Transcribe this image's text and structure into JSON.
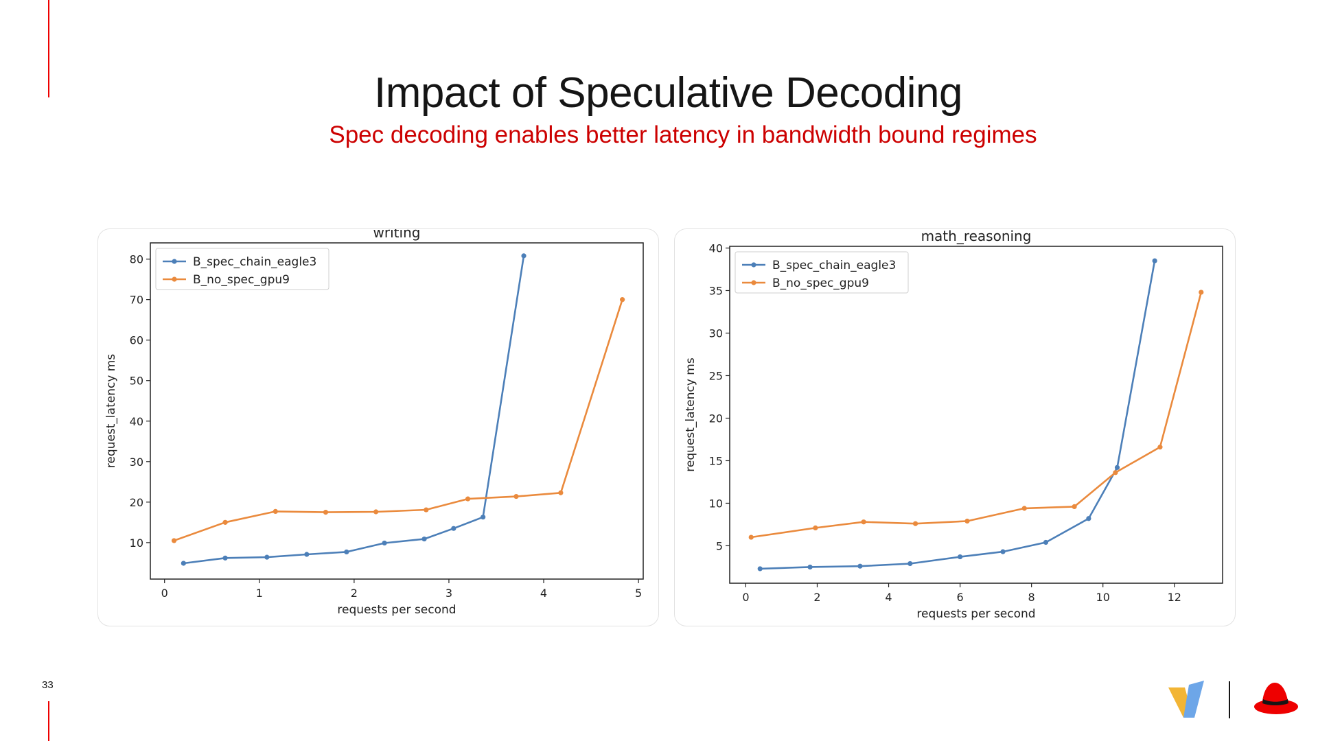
{
  "slide": {
    "title": "Impact of Speculative Decoding",
    "subtitle": "Spec decoding enables better latency in bandwidth bound regimes",
    "page_number": "33"
  },
  "colors": {
    "accent": "#ee0000",
    "subtitle": "#cc0000",
    "series_blue": "#4c7fb8",
    "series_orange": "#ea8a3d"
  },
  "logos": [
    "v-logo-icon",
    "red-hat-icon"
  ],
  "chart_data": [
    {
      "type": "line",
      "title": "writing",
      "xlabel": "requests per second",
      "ylabel": "request_latency ms",
      "xlim": [
        -0.15,
        5.05
      ],
      "ylim": [
        1,
        84
      ],
      "xticks": [
        0,
        1,
        2,
        3,
        4,
        5
      ],
      "yticks": [
        10,
        20,
        30,
        40,
        50,
        60,
        70,
        80
      ],
      "legend": "top-left",
      "grid": false,
      "series": [
        {
          "name": "B_spec_chain_eagle3",
          "color": "#4c7fb8",
          "x": [
            0.2,
            0.64,
            1.08,
            1.5,
            1.92,
            2.32,
            2.74,
            3.05,
            3.36,
            3.79
          ],
          "y": [
            4.9,
            6.2,
            6.4,
            7.1,
            7.7,
            9.9,
            10.9,
            13.5,
            16.3,
            80.8
          ]
        },
        {
          "name": "B_no_spec_gpu9",
          "color": "#ea8a3d",
          "x": [
            0.1,
            0.64,
            1.17,
            1.7,
            2.23,
            2.76,
            3.2,
            3.71,
            4.18,
            4.83
          ],
          "y": [
            10.5,
            15.0,
            17.7,
            17.5,
            17.6,
            18.1,
            20.8,
            21.4,
            22.3,
            70.0
          ]
        }
      ]
    },
    {
      "type": "line",
      "title": "math_reasoning",
      "xlabel": "requests per second",
      "ylabel": "request_latency ms",
      "xlim": [
        -0.45,
        13.35
      ],
      "ylim": [
        0.6,
        40.2
      ],
      "xticks": [
        0,
        2,
        4,
        6,
        8,
        10,
        12
      ],
      "yticks": [
        5,
        10,
        15,
        20,
        25,
        30,
        35,
        40
      ],
      "legend": "top-left",
      "grid": false,
      "series": [
        {
          "name": "B_spec_chain_eagle3",
          "color": "#4c7fb8",
          "x": [
            0.4,
            1.8,
            3.2,
            4.6,
            6.0,
            7.2,
            8.4,
            9.6,
            10.4,
            11.45
          ],
          "y": [
            2.3,
            2.5,
            2.6,
            2.9,
            3.7,
            4.3,
            5.4,
            8.2,
            14.2,
            38.5
          ]
        },
        {
          "name": "B_no_spec_gpu9",
          "color": "#ea8a3d",
          "x": [
            0.15,
            1.95,
            3.3,
            4.75,
            6.2,
            7.8,
            9.2,
            10.35,
            11.6,
            12.75
          ],
          "y": [
            6.0,
            7.1,
            7.8,
            7.6,
            7.9,
            9.4,
            9.6,
            13.6,
            16.6,
            34.8
          ]
        }
      ]
    }
  ]
}
